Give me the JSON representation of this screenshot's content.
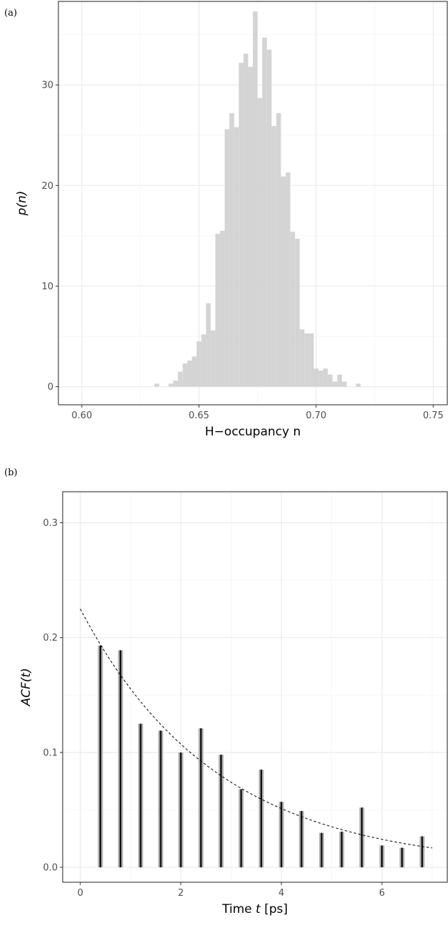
{
  "chart_data": [
    {
      "panel": "(a)",
      "type": "bar",
      "xlabel": "H−occupancy n",
      "ylabel": "p(n)",
      "xlim": [
        0.59,
        0.756
      ],
      "ylim": [
        -1.8,
        38.3
      ],
      "xticks": [
        0.6,
        0.65,
        0.7,
        0.75
      ],
      "xtick_labels": [
        "0.60",
        "0.65",
        "0.70",
        "0.75"
      ],
      "yticks": [
        0,
        10,
        20,
        30
      ],
      "ytick_labels": [
        "0",
        "10",
        "20",
        "30"
      ],
      "grid": true,
      "bin_width": 0.002,
      "x": [
        0.632,
        0.634,
        0.636,
        0.638,
        0.64,
        0.642,
        0.644,
        0.646,
        0.648,
        0.65,
        0.652,
        0.654,
        0.656,
        0.658,
        0.66,
        0.662,
        0.664,
        0.666,
        0.668,
        0.67,
        0.672,
        0.674,
        0.676,
        0.678,
        0.68,
        0.682,
        0.684,
        0.686,
        0.688,
        0.69,
        0.692,
        0.694,
        0.696,
        0.698,
        0.7,
        0.702,
        0.704,
        0.706,
        0.708,
        0.71,
        0.712,
        0.714,
        0.716,
        0.718
      ],
      "values": [
        0.3,
        0.0,
        0.0,
        0.3,
        0.6,
        1.5,
        2.3,
        2.6,
        3.0,
        4.5,
        5.2,
        8.3,
        5.6,
        15.2,
        15.5,
        25.6,
        27.2,
        25.8,
        32.2,
        33.1,
        31.8,
        37.3,
        28.7,
        34.7,
        33.5,
        25.9,
        27.2,
        20.9,
        21.3,
        15.4,
        14.7,
        5.7,
        5.3,
        5.3,
        1.8,
        1.6,
        1.8,
        1.2,
        0.5,
        1.2,
        0.5,
        0.0,
        0.0,
        0.3
      ]
    },
    {
      "panel": "(b)",
      "type": "bar",
      "xlabel": "Time t [ps]",
      "ylabel": "ACF(t)",
      "xlim": [
        -0.35,
        7.3
      ],
      "ylim": [
        -0.013,
        0.327
      ],
      "xticks": [
        0,
        2,
        4,
        6
      ],
      "xtick_labels": [
        "0",
        "2",
        "4",
        "6"
      ],
      "yticks": [
        0.0,
        0.1,
        0.2,
        0.3
      ],
      "ytick_labels": [
        "0.0",
        "0.1",
        "0.2",
        "0.3"
      ],
      "grid": true,
      "x": [
        0.4,
        0.8,
        1.2,
        1.6,
        2.0,
        2.4,
        2.8,
        3.2,
        3.6,
        4.0,
        4.4,
        4.8,
        5.2,
        5.6,
        6.0,
        6.4,
        6.8
      ],
      "values": [
        0.193,
        0.189,
        0.125,
        0.119,
        0.1,
        0.121,
        0.098,
        0.068,
        0.085,
        0.057,
        0.049,
        0.03,
        0.031,
        0.052,
        0.019,
        0.017,
        0.027
      ],
      "fit": {
        "style": "dashed",
        "amplitude": 0.225,
        "decay_time": 2.7,
        "offset": 0.0,
        "x_range": [
          0,
          7
        ]
      }
    }
  ]
}
